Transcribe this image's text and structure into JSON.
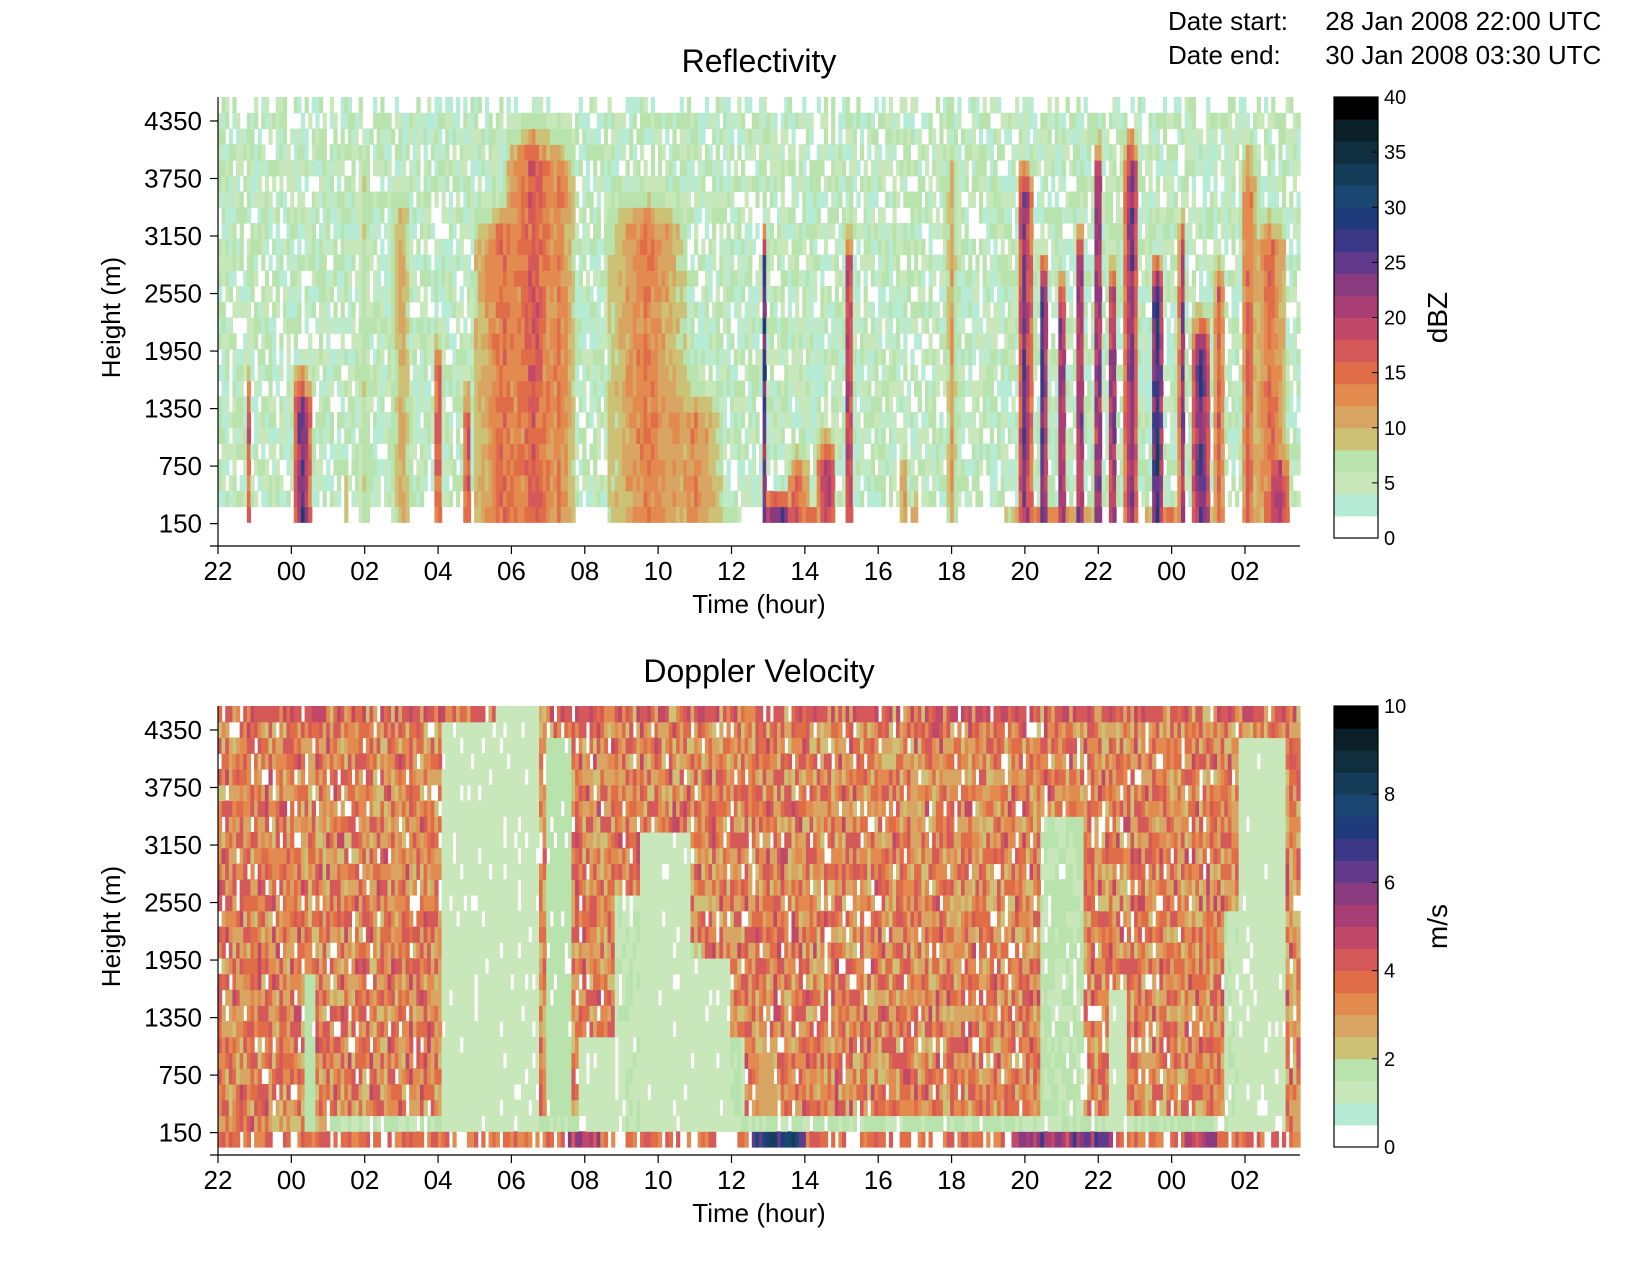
{
  "header": {
    "date_start_label": "Date start:",
    "date_start_value": "28 Jan 2008 22:00 UTC",
    "date_end_label": "Date end:",
    "date_end_value": "30 Jan 2008 03:30 UTC"
  },
  "palette": {
    "levels": [
      "#ffffff",
      "#b6ecd6",
      "#c8e8bb",
      "#b8e3ac",
      "#cdc176",
      "#d9a562",
      "#e38b4f",
      "#e06d48",
      "#d6595a",
      "#c24868",
      "#a83e74",
      "#8a3b80",
      "#623a8c",
      "#3b3887",
      "#1f3a7a",
      "#1a4771",
      "#153c58",
      "#0f2f3e",
      "#0a1f27",
      "#000000"
    ]
  },
  "chart_data": [
    {
      "type": "heatmap",
      "title": "Reflectivity",
      "xlabel": "Time (hour)",
      "ylabel": "Height (m)",
      "xtick_labels": [
        "22",
        "00",
        "02",
        "04",
        "06",
        "08",
        "10",
        "12",
        "14",
        "16",
        "18",
        "20",
        "22",
        "00",
        "02"
      ],
      "xlim_hours": [
        22,
        51.5
      ],
      "ytick_labels": [
        "150",
        "750",
        "1350",
        "1950",
        "2550",
        "3150",
        "3750",
        "4350"
      ],
      "yticks": [
        150,
        750,
        1350,
        1950,
        2550,
        3150,
        3750,
        4350
      ],
      "ylim": [
        0,
        4600
      ],
      "colorbar": {
        "label": "dBZ",
        "ticks": [
          "0",
          "5",
          "10",
          "15",
          "20",
          "25",
          "30",
          "35",
          "40"
        ],
        "range": [
          0,
          40
        ]
      },
      "background_range": [
        2,
        8
      ],
      "features": [
        {
          "t": 22.8,
          "width": 0.12,
          "top": 1900,
          "value": 22
        },
        {
          "t": 24.3,
          "width": 0.45,
          "top": 1800,
          "value": 26
        },
        {
          "t": 25.5,
          "width": 0.1,
          "top": 900,
          "value": 10
        },
        {
          "t": 26.0,
          "width": 0.3,
          "top": 4200,
          "value": 8
        },
        {
          "t": 27.0,
          "width": 0.5,
          "top": 3800,
          "value": 11
        },
        {
          "t": 28.0,
          "width": 0.2,
          "top": 2200,
          "value": 20
        },
        {
          "t": 28.8,
          "width": 0.2,
          "top": 1700,
          "value": 20
        },
        {
          "t": 29.8,
          "width": 1.7,
          "top": 3600,
          "value": 15
        },
        {
          "t": 30.6,
          "width": 1.5,
          "top": 4400,
          "value": 17
        },
        {
          "t": 31.3,
          "width": 0.9,
          "top": 4300,
          "value": 14
        },
        {
          "t": 33.7,
          "width": 2.1,
          "top": 3700,
          "value": 14
        },
        {
          "t": 34.4,
          "width": 1.5,
          "top": 2000,
          "value": 12
        },
        {
          "t": 35.0,
          "width": 1.6,
          "top": 1700,
          "value": 13
        },
        {
          "t": 34.8,
          "width": 3.0,
          "top": 350,
          "value": 21
        },
        {
          "t": 36.9,
          "width": 0.18,
          "top": 3300,
          "value": 25
        },
        {
          "t": 37.3,
          "width": 1.0,
          "top": 550,
          "value": 32
        },
        {
          "t": 37.8,
          "width": 0.6,
          "top": 1000,
          "value": 18
        },
        {
          "t": 38.6,
          "width": 0.5,
          "top": 1200,
          "value": 22
        },
        {
          "t": 38.2,
          "width": 0.5,
          "top": 350,
          "value": 34
        },
        {
          "t": 39.2,
          "width": 0.18,
          "top": 3300,
          "value": 25
        },
        {
          "t": 40.7,
          "width": 0.2,
          "top": 1100,
          "value": 14
        },
        {
          "t": 41.0,
          "width": 0.2,
          "top": 500,
          "value": 19
        },
        {
          "t": 42.0,
          "width": 0.25,
          "top": 4200,
          "value": 12
        },
        {
          "t": 44.0,
          "width": 0.4,
          "top": 4000,
          "value": 24
        },
        {
          "t": 44.5,
          "width": 0.25,
          "top": 3000,
          "value": 28
        },
        {
          "t": 45.0,
          "width": 0.2,
          "top": 2800,
          "value": 27
        },
        {
          "t": 45.5,
          "width": 0.25,
          "top": 3300,
          "value": 26
        },
        {
          "t": 46.0,
          "width": 0.25,
          "top": 4200,
          "value": 26
        },
        {
          "t": 46.4,
          "width": 0.25,
          "top": 3000,
          "value": 25
        },
        {
          "t": 46.9,
          "width": 0.35,
          "top": 4300,
          "value": 25
        },
        {
          "t": 47.6,
          "width": 0.35,
          "top": 3000,
          "value": 30
        },
        {
          "t": 48.3,
          "width": 0.2,
          "top": 3400,
          "value": 22
        },
        {
          "t": 48.8,
          "width": 0.5,
          "top": 2400,
          "value": 27
        },
        {
          "t": 49.3,
          "width": 0.3,
          "top": 3000,
          "value": 17
        },
        {
          "t": 50.1,
          "width": 0.4,
          "top": 4200,
          "value": 16
        },
        {
          "t": 50.7,
          "width": 0.9,
          "top": 3500,
          "value": 15
        },
        {
          "t": 50.9,
          "width": 0.6,
          "top": 1100,
          "value": 23
        },
        {
          "t": 44.7,
          "width": 2.6,
          "top": 300,
          "value": 35
        },
        {
          "t": 47.8,
          "width": 1.1,
          "top": 300,
          "value": 38
        },
        {
          "t": 48.9,
          "width": 0.4,
          "top": 300,
          "value": 34
        }
      ]
    },
    {
      "type": "heatmap",
      "title": "Doppler Velocity",
      "xlabel": "Time (hour)",
      "ylabel": "Height (m)",
      "xtick_labels": [
        "22",
        "00",
        "02",
        "04",
        "06",
        "08",
        "10",
        "12",
        "14",
        "16",
        "18",
        "20",
        "22",
        "00",
        "02"
      ],
      "xlim_hours": [
        22,
        51.5
      ],
      "ytick_labels": [
        "150",
        "750",
        "1350",
        "1950",
        "2550",
        "3150",
        "3750",
        "4350"
      ],
      "yticks": [
        150,
        750,
        1350,
        1950,
        2550,
        3150,
        3750,
        4350
      ],
      "ylim": [
        0,
        4600
      ],
      "colorbar": {
        "label": "m/s",
        "ticks": [
          "0",
          "2",
          "4",
          "6",
          "8",
          "10"
        ],
        "range": [
          0,
          10
        ]
      },
      "background_range": [
        2.2,
        4.6
      ],
      "calm_regions": [
        {
          "t": 29.0,
          "width": 2.2,
          "top": 4400,
          "value": 1.2
        },
        {
          "t": 30.2,
          "width": 1.4,
          "top": 4600,
          "value": 1.1
        },
        {
          "t": 31.3,
          "width": 0.9,
          "top": 4300,
          "value": 1.5
        },
        {
          "t": 32.5,
          "width": 1.5,
          "top": 1200,
          "value": 1.0
        },
        {
          "t": 33.2,
          "width": 1.0,
          "top": 2600,
          "value": 1.3
        },
        {
          "t": 34.2,
          "width": 1.7,
          "top": 3300,
          "value": 1.1
        },
        {
          "t": 34.9,
          "width": 0.7,
          "top": 2200,
          "value": 1.9
        },
        {
          "t": 35.4,
          "width": 1.4,
          "top": 2000,
          "value": 1.1
        },
        {
          "t": 36.0,
          "width": 0.8,
          "top": 1200,
          "value": 1.4
        },
        {
          "t": 37.0,
          "width": 0.5,
          "top": 1100,
          "value": 2.6
        },
        {
          "t": 24.5,
          "width": 0.25,
          "top": 1800,
          "value": 1.5
        },
        {
          "t": 45.0,
          "width": 1.3,
          "top": 3400,
          "value": 1.4
        },
        {
          "t": 46.5,
          "width": 0.6,
          "top": 1600,
          "value": 1.2
        },
        {
          "t": 50.5,
          "width": 1.5,
          "top": 4200,
          "value": 1.2
        },
        {
          "t": 49.7,
          "width": 0.6,
          "top": 2500,
          "value": 1.3
        }
      ],
      "surface_band": {
        "top": 350,
        "value": 1.3
      },
      "surface_spikes": [
        {
          "t": 37.3,
          "width": 1.6,
          "value": 7.0
        },
        {
          "t": 45.0,
          "width": 3.0,
          "value": 5.5
        },
        {
          "t": 48.8,
          "width": 1.0,
          "value": 5.0
        },
        {
          "t": 32.0,
          "width": 1.0,
          "value": 5.0
        }
      ]
    }
  ]
}
